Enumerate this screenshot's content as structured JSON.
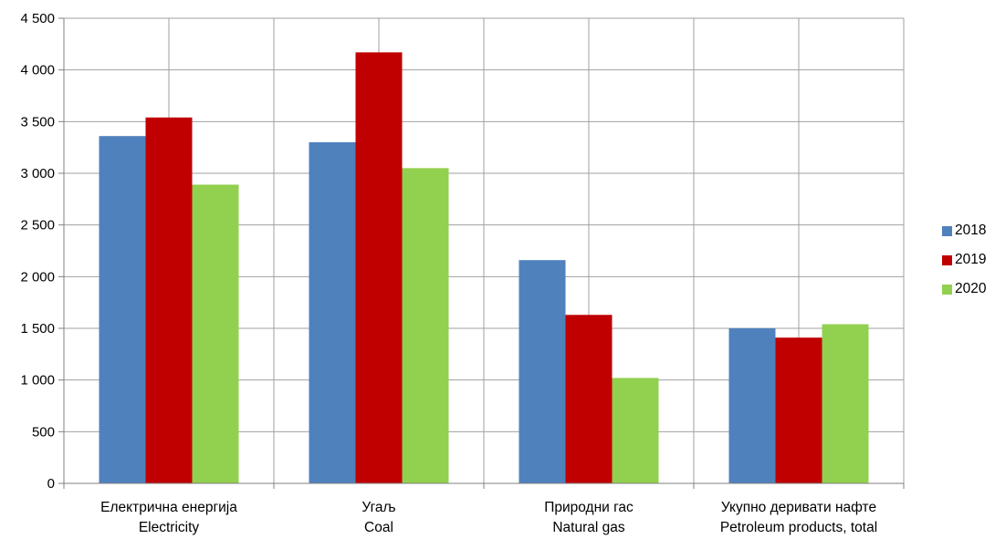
{
  "chart_data": {
    "type": "bar",
    "categories": [
      [
        "Електрична енергија",
        "Electricity"
      ],
      [
        "Угаљ",
        "Coal"
      ],
      [
        "Природни гас",
        "Natural gas"
      ],
      [
        "Укупно деривати нафте",
        "Petroleum products, total"
      ]
    ],
    "series": [
      {
        "name": "2018",
        "color": "#4f81bd",
        "values": [
          3360,
          3300,
          2160,
          1500
        ]
      },
      {
        "name": "2019",
        "color": "#c00000",
        "values": [
          3540,
          4170,
          1630,
          1410
        ]
      },
      {
        "name": "2020",
        "color": "#92d050",
        "values": [
          2890,
          3050,
          1020,
          1540
        ]
      }
    ],
    "ylim": [
      0,
      4500
    ],
    "yticks": [
      0,
      500,
      1000,
      1500,
      2000,
      2500,
      3000,
      3500,
      4000,
      4500
    ],
    "ytick_labels": [
      "0",
      "500",
      "1 000",
      "1 500",
      "2 000",
      "2 500",
      "3 000",
      "3 500",
      "4 000",
      "4 500"
    ],
    "grid": true,
    "legend_position": "right",
    "title": "",
    "xlabel": "",
    "ylabel": ""
  }
}
